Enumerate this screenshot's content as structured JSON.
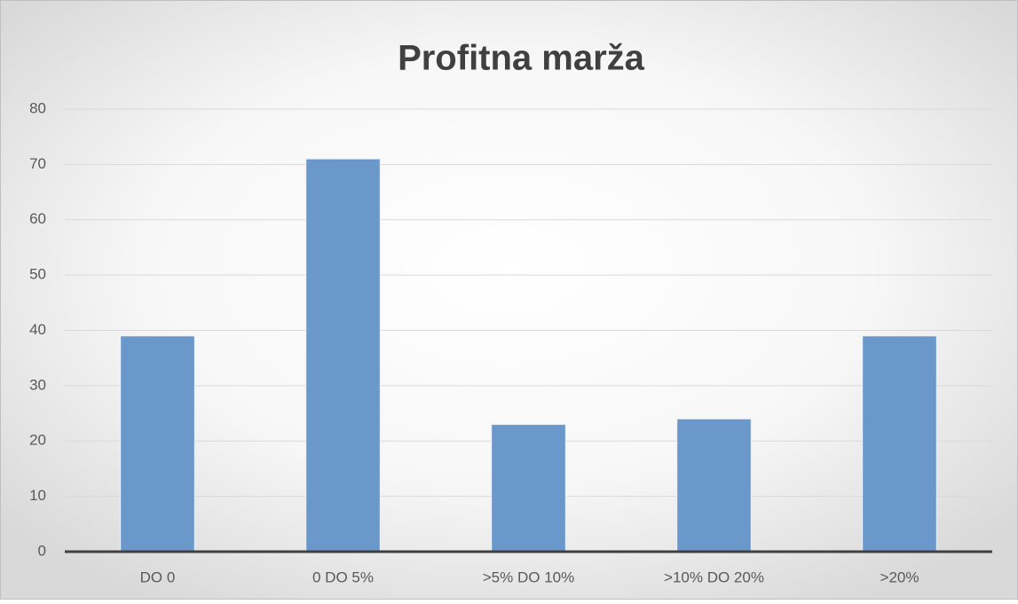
{
  "chart_data": {
    "type": "bar",
    "title": "Profitna marža",
    "categories": [
      "DO 0",
      "0 DO 5%",
      ">5% DO 10%",
      ">10% DO 20%",
      ">20%"
    ],
    "values": [
      39,
      71,
      23,
      24,
      39
    ],
    "color": "#6b98cb",
    "ylim": [
      0,
      80
    ],
    "yticks": [
      0,
      10,
      20,
      30,
      40,
      50,
      60,
      70,
      80
    ],
    "grid": true
  }
}
